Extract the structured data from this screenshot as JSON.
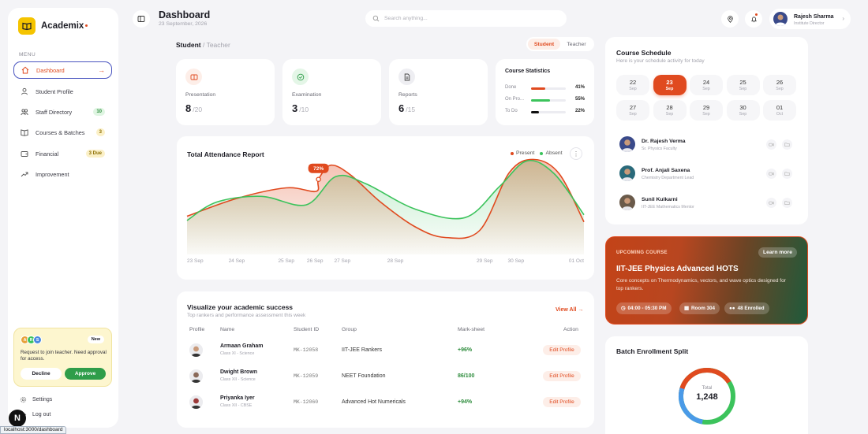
{
  "brand": {
    "name": "Academix"
  },
  "menu": {
    "label": "MENU",
    "items": [
      {
        "label": "Dashboard",
        "icon": "home-icon",
        "active": true
      },
      {
        "label": "Student Profile",
        "icon": "user-icon"
      },
      {
        "label": "Staff Directory",
        "icon": "users-icon",
        "badge": "10"
      },
      {
        "label": "Courses & Batches",
        "icon": "book-icon",
        "badge": "3"
      },
      {
        "label": "Financial",
        "icon": "wallet-icon",
        "badge": "3 Due"
      },
      {
        "label": "Improvement",
        "icon": "trending-icon"
      }
    ]
  },
  "request_card": {
    "avatars": [
      "A",
      "R",
      "S"
    ],
    "badge": "New",
    "text": "Request to join teacher. Need approval for access.",
    "decline": "Decline",
    "approve": "Approve"
  },
  "footer": {
    "settings": "Settings",
    "logout": "Log out"
  },
  "url_hint": "localhost:3000/dashboard",
  "next_badge": "N",
  "header": {
    "title": "Dashboard",
    "date": "23 September, 2026",
    "search_placeholder": "Search anything...",
    "user": {
      "name": "Rajesh Sharma",
      "role": "Institute Director"
    }
  },
  "role_switch": {
    "current": "Student",
    "separator": " / ",
    "other": "Teacher"
  },
  "segment": [
    "Student",
    "Teacher"
  ],
  "stats": [
    {
      "label": "Presentation",
      "value": "8",
      "total": "/20",
      "icon": "presentation-icon",
      "color": "#e04a1f",
      "bg": "#fdeee8"
    },
    {
      "label": "Examination",
      "value": "3",
      "total": "/10",
      "icon": "check-circle-icon",
      "color": "#2f9d4a",
      "bg": "#e4f6e7"
    },
    {
      "label": "Reports",
      "value": "6",
      "total": "/15",
      "icon": "document-icon",
      "color": "#444",
      "bg": "#eeeef2"
    }
  ],
  "course_stats": {
    "title": "Course Statistics",
    "rows": [
      {
        "label": "Done",
        "pct": "41%",
        "value": 41,
        "color": "#e04a1f"
      },
      {
        "label": "On Pro...",
        "pct": "55%",
        "value": 55,
        "color": "#3cc35c"
      },
      {
        "label": "To Do",
        "pct": "22%",
        "value": 22,
        "color": "#111"
      }
    ]
  },
  "attendance": {
    "title": "Total Attendance Report",
    "legend": [
      "Present",
      "Absent"
    ],
    "more": "⋮",
    "tooltip": "72%"
  },
  "chart_data": {
    "type": "area",
    "title": "Total Attendance Report",
    "categories": [
      "23 Sep",
      "24 Sep",
      "25 Sep",
      "26 Sep",
      "27 Sep",
      "28 Sep",
      "29 Sep",
      "30 Sep",
      "01 Oct"
    ],
    "x_positions": [
      0,
      1,
      2,
      2.58,
      3.13,
      4.2,
      6,
      6.63,
      8
    ],
    "series": [
      {
        "name": "Present",
        "color": "#e04a1f",
        "points": [
          [
            0,
            20
          ],
          [
            1,
            45
          ],
          [
            2,
            60
          ],
          [
            2.6,
            55
          ],
          [
            2.65,
            72
          ],
          [
            2.9,
            92
          ],
          [
            3.3,
            78
          ],
          [
            3.9,
            40
          ],
          [
            4.6,
            5
          ],
          [
            5.2,
            -10
          ],
          [
            5.9,
            0
          ],
          [
            6.5,
            82
          ],
          [
            7,
            100
          ],
          [
            7.5,
            80
          ],
          [
            8,
            12
          ]
        ]
      },
      {
        "name": "Absent",
        "color": "#3cc35c",
        "points": [
          [
            0,
            14
          ],
          [
            0.6,
            40
          ],
          [
            1.5,
            48
          ],
          [
            2.4,
            36
          ],
          [
            3,
            76
          ],
          [
            3.6,
            66
          ],
          [
            4.6,
            30
          ],
          [
            5.6,
            18
          ],
          [
            6.3,
            62
          ],
          [
            6.85,
            98
          ],
          [
            7.4,
            80
          ],
          [
            8,
            22
          ]
        ]
      }
    ],
    "ylim": [
      -15,
      105
    ],
    "annotation": {
      "x": 2.65,
      "y": 72,
      "label": "72%"
    },
    "legend_position": "top-right"
  },
  "academic": {
    "title": "Visualize your academic success",
    "subtitle": "Top rankers and performance assessment this week",
    "view_all": "View All →",
    "columns": [
      "Profile",
      "Name",
      "Student ID",
      "Group",
      "Mark-sheet",
      "Action"
    ],
    "rows": [
      {
        "name": "Armaan Graham",
        "class": "Class XI - Science",
        "id": "MK-12058",
        "group": "IIT-JEE Rankers",
        "mark": "+96%",
        "action": "Edit Profile",
        "skin": "#c99a7a"
      },
      {
        "name": "Dwight Brown",
        "class": "Class XII - Science",
        "id": "MK-12059",
        "group": "NEET Foundation",
        "mark": "86/100",
        "action": "Edit Profile",
        "skin": "#8a6a5a"
      },
      {
        "name": "Priyanka Iyer",
        "class": "Class XII - CBSE",
        "id": "MK-12060",
        "group": "Advanced Hot Numericals",
        "mark": "+94%",
        "action": "Edit Profile",
        "skin": "#9c3a3a"
      }
    ]
  },
  "schedule": {
    "title": "Course Schedule",
    "subtitle": "Here is your schedule activity for today",
    "days": [
      {
        "d": "22",
        "m": "Sep"
      },
      {
        "d": "23",
        "m": "Sep",
        "selected": true
      },
      {
        "d": "24",
        "m": "Sep"
      },
      {
        "d": "25",
        "m": "Sep"
      },
      {
        "d": "26",
        "m": "Sep"
      },
      {
        "d": "27",
        "m": "Sep"
      },
      {
        "d": "28",
        "m": "Sep"
      },
      {
        "d": "29",
        "m": "Sep"
      },
      {
        "d": "30",
        "m": "Sep"
      },
      {
        "d": "01",
        "m": "Oct"
      }
    ],
    "tutors": [
      {
        "name": "Dr. Rajesh Verma",
        "role": "Sr. Physics Faculty",
        "bg": "#3a4a8a"
      },
      {
        "name": "Prof. Anjali Saxena",
        "role": "Chemistry Department Lead",
        "bg": "#2a6a7a"
      },
      {
        "name": "Sunil Kulkarni",
        "role": "IIT-JEE Mathematics Mentor",
        "bg": "#6a5a4a"
      }
    ]
  },
  "upcoming": {
    "tag": "UPCOMING COURSE",
    "learn_more": "Learn more",
    "title": "IIT-JEE Physics Advanced HOTS",
    "description": "Core concepts on Thermodynamics, vectors, and wave optics designed for top rankers.",
    "time": "04:00 - 05:30 PM",
    "room": "Room 304",
    "enrolled": "48 Enrolled"
  },
  "batch": {
    "title": "Batch Enrollment Split",
    "total_label": "Total",
    "total_value": "1,248"
  }
}
